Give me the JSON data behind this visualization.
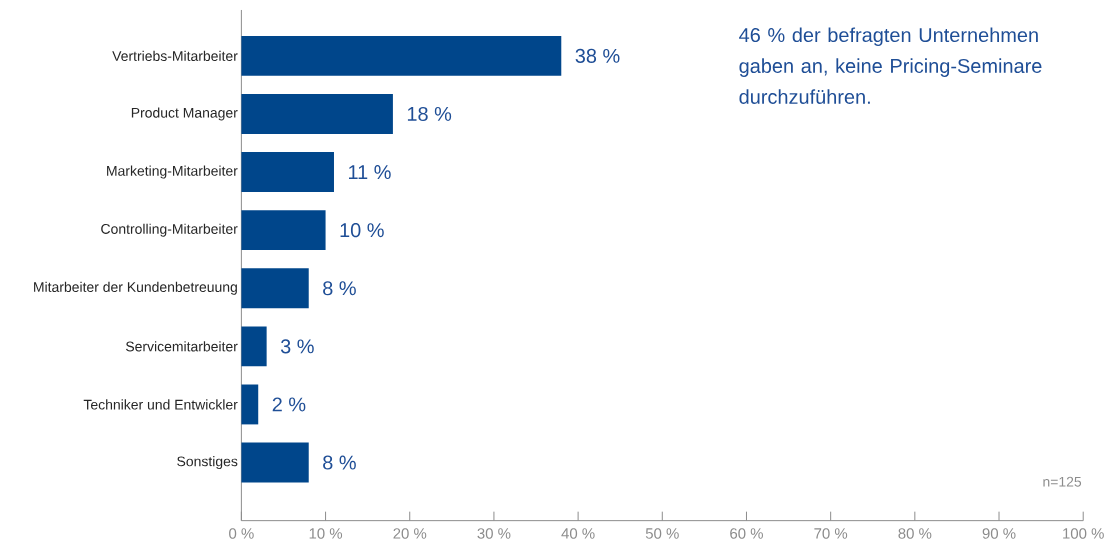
{
  "chart_data": {
    "type": "bar",
    "orientation": "horizontal",
    "categories": [
      "Vertriebs-Mitarbeiter",
      "Product Manager",
      "Marketing-Mitarbeiter",
      "Controlling-Mitarbeiter",
      "Mitarbeiter der Kundenbetreuung",
      "Servicemitarbeiter",
      "Techniker und Entwickler",
      "Sonstiges"
    ],
    "values": [
      38,
      18,
      11,
      10,
      8,
      3,
      2,
      8
    ],
    "value_labels": [
      "38 %",
      "18 %",
      "11 %",
      "10 %",
      "8 %",
      "3 %",
      "2 %",
      "8 %"
    ],
    "color": "#00468b",
    "xlim": [
      0,
      100
    ],
    "xticks": [
      {
        "value": 0,
        "label": "0 %"
      },
      {
        "value": 10,
        "label": "10 %"
      },
      {
        "value": 20,
        "label": "20 %"
      },
      {
        "value": 30,
        "label": "30 %"
      },
      {
        "value": 40,
        "label": "40 %"
      },
      {
        "value": 50,
        "label": "50 %"
      },
      {
        "value": 60,
        "label": "60 %"
      },
      {
        "value": 70,
        "label": "70 %"
      },
      {
        "value": 80,
        "label": "80 %"
      },
      {
        "value": 90,
        "label": "90 %"
      },
      {
        "value": 100,
        "label": "100 %"
      }
    ],
    "annotations": [
      "46 % der befragten Unternehmen gaben an, keine Pricing-Seminare durchzuführen.",
      "n=125"
    ]
  }
}
